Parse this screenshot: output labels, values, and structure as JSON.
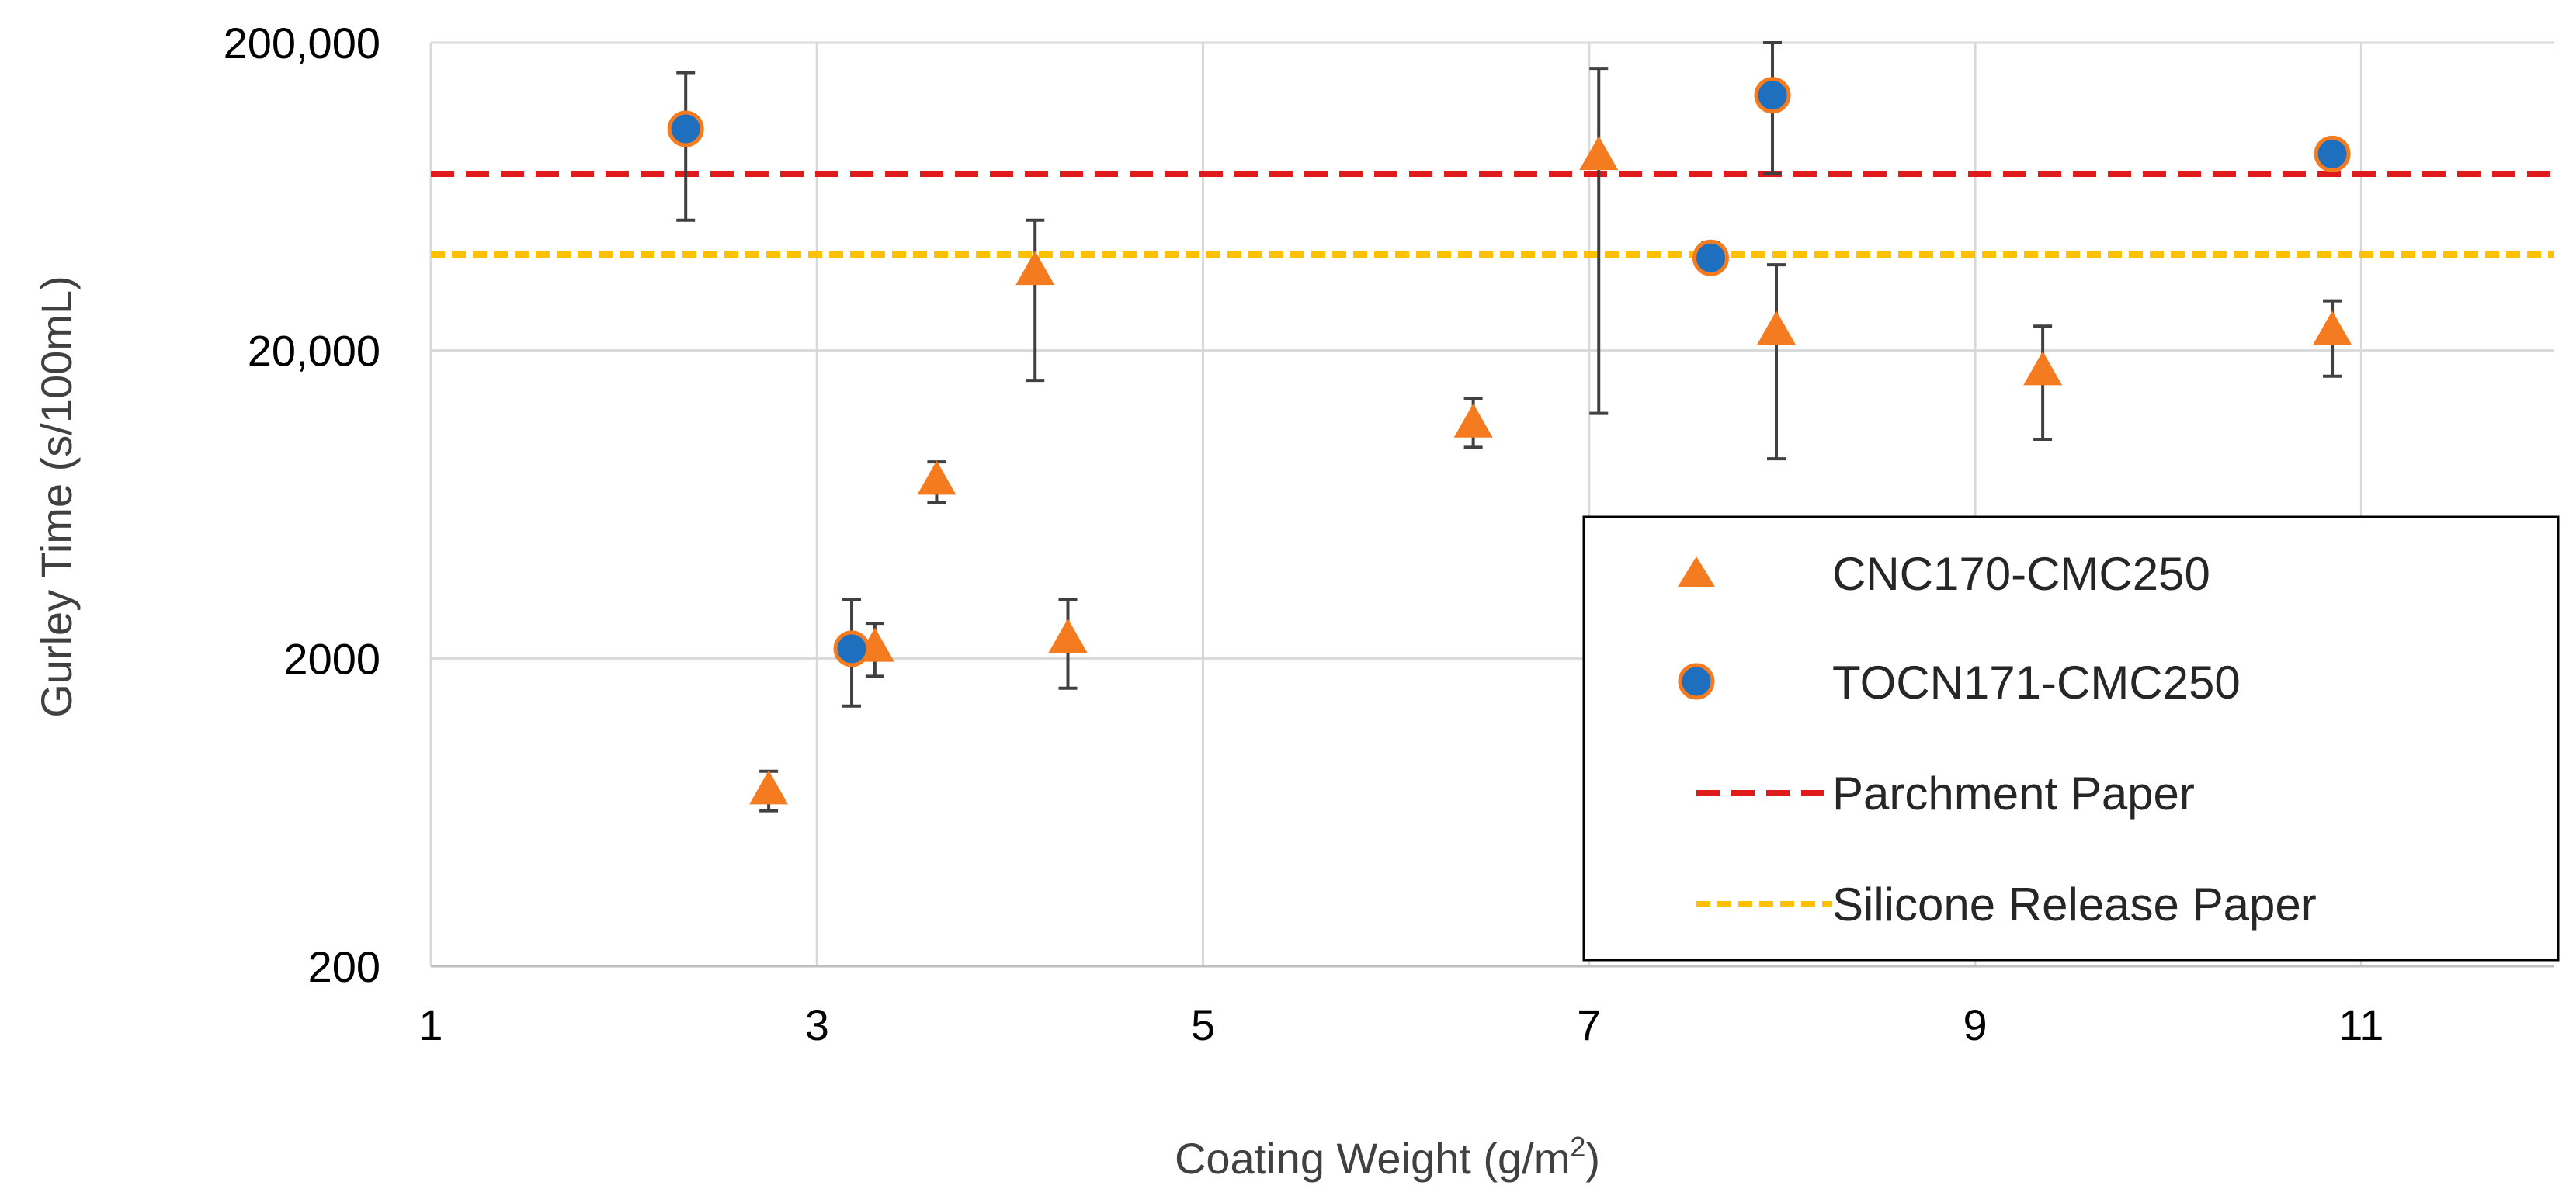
{
  "chart_data": {
    "type": "scatter",
    "title": "",
    "xlabel": "Coating Weight (g/m",
    "xlabel_sup": "2",
    "xlabel_end": ")",
    "ylabel": "Gurley Time (s/100mL)",
    "xlim": [
      1,
      12
    ],
    "ylim": [
      200,
      200000
    ],
    "yscale": "log",
    "grid": true,
    "legend_position": "lower-right",
    "x_ticks": [
      {
        "value": 1,
        "label": "1"
      },
      {
        "value": 3,
        "label": "3"
      },
      {
        "value": 5,
        "label": "5"
      },
      {
        "value": 7,
        "label": "7"
      },
      {
        "value": 9,
        "label": "9"
      },
      {
        "value": 11,
        "label": "11"
      }
    ],
    "y_ticks": [
      {
        "value": 200,
        "label": "200"
      },
      {
        "value": 2000,
        "label": "2000"
      },
      {
        "value": 20000,
        "label": "20,000"
      },
      {
        "value": 200000,
        "label": "200,000"
      }
    ],
    "series": [
      {
        "name": "CNC170-CMC250",
        "marker": "triangle",
        "color": "#F47B20",
        "points": [
          {
            "x": 2.75,
            "y": 740,
            "ylo": 640,
            "yhi": 860
          },
          {
            "x": 3.3,
            "y": 2150,
            "ylo": 1750,
            "yhi": 2600
          },
          {
            "x": 3.62,
            "y": 7500,
            "ylo": 6400,
            "yhi": 8700
          },
          {
            "x": 4.13,
            "y": 36000,
            "ylo": 16000,
            "yhi": 53000
          },
          {
            "x": 4.3,
            "y": 2300,
            "ylo": 1600,
            "yhi": 3100
          },
          {
            "x": 6.4,
            "y": 11500,
            "ylo": 9700,
            "yhi": 14000
          },
          {
            "x": 7.05,
            "y": 85000,
            "ylo": 12500,
            "yhi": 165000
          },
          {
            "x": 7.97,
            "y": 23000,
            "ylo": 8900,
            "yhi": 38000
          },
          {
            "x": 9.35,
            "y": 17000,
            "ylo": 10300,
            "yhi": 24000
          },
          {
            "x": 10.85,
            "y": 23000,
            "ylo": 16500,
            "yhi": 29000
          }
        ]
      },
      {
        "name": "TOCN171-CMC250",
        "marker": "circle",
        "color": "#1F6FBF",
        "edge": "#F47B20",
        "points": [
          {
            "x": 2.32,
            "y": 105000,
            "ylo": 53000,
            "yhi": 160000
          },
          {
            "x": 3.18,
            "y": 2150,
            "ylo": 1400,
            "yhi": 3100
          },
          {
            "x": 7.63,
            "y": 40000,
            "ylo": 36000,
            "yhi": 45000
          },
          {
            "x": 7.95,
            "y": 135000,
            "ylo": 75000,
            "yhi": 200000
          },
          {
            "x": 10.85,
            "y": 87000,
            "ylo": 87000,
            "yhi": 87000
          }
        ]
      }
    ],
    "reference_lines": [
      {
        "name": "Parchment Paper",
        "y": 75000,
        "color": "#E01B1B",
        "dash": "long"
      },
      {
        "name": "Silicone Release Paper",
        "y": 41000,
        "color": "#FFC000",
        "dash": "short"
      }
    ]
  }
}
